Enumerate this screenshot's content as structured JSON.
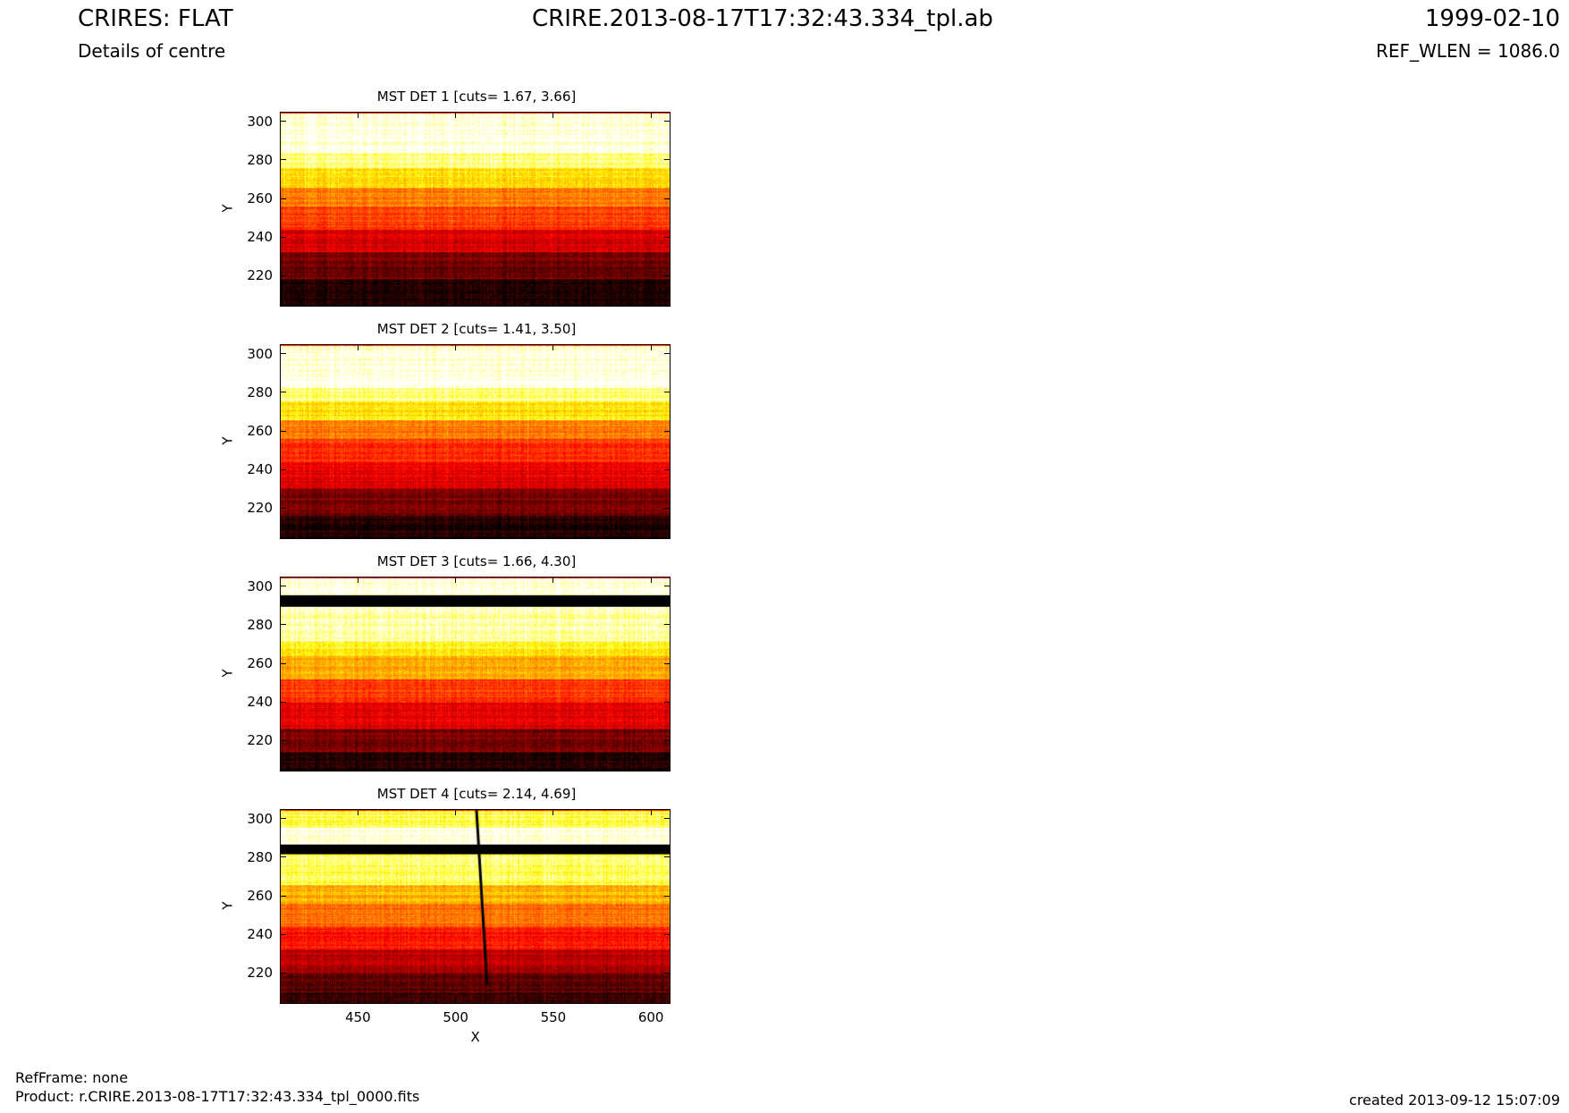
{
  "header": {
    "left_title": "CRIRES: FLAT",
    "left_subtitle": "Details of centre",
    "center_title": "CRIRE.2013-08-17T17:32:43.334_tpl.ab",
    "right_title": "1999-02-10",
    "right_subtitle": "REF_WLEN = 1086.0"
  },
  "footer": {
    "refframe": "RefFrame: none",
    "product": "Product: r.CRIRE.2013-08-17T17:32:43.334_tpl_0000.fits",
    "created": "created 2013-09-12 15:07:09"
  },
  "colors": {
    "colormap": "heat (black-red-yellow-white)",
    "axis": "#000000",
    "background": "#ffffff"
  },
  "chart_data": [
    {
      "type": "heatmap",
      "title": "MST DET 1 [cuts= 1.67, 3.66]",
      "xlabel": "",
      "ylabel": "Y",
      "xlim": [
        410,
        610
      ],
      "ylim": [
        204,
        305
      ],
      "yticks": [
        220,
        240,
        260,
        280,
        300
      ],
      "xticks": [],
      "bands": [
        [
          204,
          218,
          0.05
        ],
        [
          218,
          232,
          0.18
        ],
        [
          232,
          244,
          0.35
        ],
        [
          244,
          256,
          0.52
        ],
        [
          256,
          266,
          0.62
        ],
        [
          266,
          276,
          0.78
        ],
        [
          276,
          284,
          0.9
        ],
        [
          284,
          305,
          1.0
        ]
      ]
    },
    {
      "type": "heatmap",
      "title": "MST DET 2 [cuts= 1.41, 3.50]",
      "xlabel": "",
      "ylabel": "Y",
      "xlim": [
        410,
        610
      ],
      "ylim": [
        204,
        305
      ],
      "yticks": [
        220,
        240,
        260,
        280,
        300
      ],
      "xticks": [],
      "bands": [
        [
          204,
          216,
          0.05
        ],
        [
          216,
          230,
          0.2
        ],
        [
          230,
          244,
          0.38
        ],
        [
          244,
          256,
          0.5
        ],
        [
          256,
          266,
          0.62
        ],
        [
          266,
          276,
          0.8
        ],
        [
          276,
          283,
          0.92
        ],
        [
          283,
          305,
          1.0
        ]
      ]
    },
    {
      "type": "heatmap",
      "title": "MST DET 3 [cuts= 1.66, 4.30]",
      "xlabel": "",
      "ylabel": "Y",
      "xlim": [
        410,
        610
      ],
      "ylim": [
        204,
        305
      ],
      "yticks": [
        220,
        240,
        260,
        280,
        300
      ],
      "xticks": [],
      "bands": [
        [
          204,
          214,
          0.05
        ],
        [
          214,
          226,
          0.2
        ],
        [
          226,
          240,
          0.38
        ],
        [
          240,
          252,
          0.52
        ],
        [
          252,
          264,
          0.7
        ],
        [
          264,
          272,
          0.82
        ],
        [
          272,
          290,
          0.95
        ],
        [
          290,
          294,
          0.0
        ],
        [
          294,
          296,
          0.0
        ],
        [
          296,
          305,
          1.0
        ]
      ]
    },
    {
      "type": "heatmap",
      "title": "MST DET 4 [cuts= 2.14, 4.69]",
      "xlabel": "X",
      "ylabel": "Y",
      "xlim": [
        410,
        610
      ],
      "ylim": [
        204,
        305
      ],
      "yticks": [
        220,
        240,
        260,
        280,
        300
      ],
      "xticks": [
        450,
        500,
        550,
        600
      ],
      "bands": [
        [
          204,
          210,
          0.1
        ],
        [
          210,
          220,
          0.15
        ],
        [
          220,
          232,
          0.3
        ],
        [
          232,
          244,
          0.45
        ],
        [
          244,
          256,
          0.6
        ],
        [
          256,
          266,
          0.72
        ],
        [
          266,
          282,
          0.88
        ],
        [
          282,
          287,
          0.0
        ],
        [
          287,
          296,
          1.0
        ],
        [
          296,
          305,
          0.88
        ]
      ]
    }
  ]
}
